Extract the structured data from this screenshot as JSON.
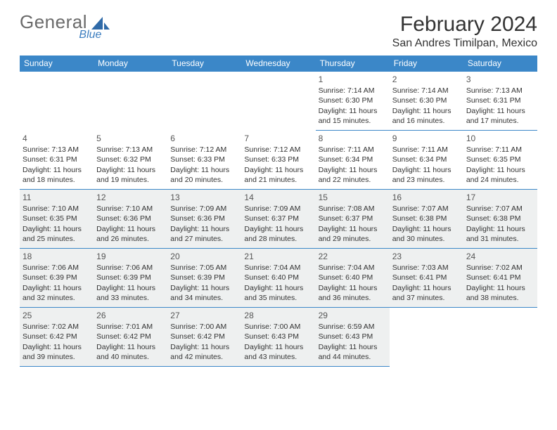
{
  "logo": {
    "general": "General",
    "blue": "Blue"
  },
  "title": "February 2024",
  "location": "San Andres Timilpan, Mexico",
  "colors": {
    "header_bg": "#3b87c8",
    "shaded_bg": "#eef0f0",
    "rule": "#3b87c8",
    "text": "#333333"
  },
  "dow": [
    "Sunday",
    "Monday",
    "Tuesday",
    "Wednesday",
    "Thursday",
    "Friday",
    "Saturday"
  ],
  "weeks": [
    [
      {
        "blank": true
      },
      {
        "blank": true
      },
      {
        "blank": true
      },
      {
        "blank": true
      },
      {
        "num": "1",
        "sunrise": "Sunrise: 7:14 AM",
        "sunset": "Sunset: 6:30 PM",
        "day1": "Daylight: 11 hours",
        "day2": "and 15 minutes."
      },
      {
        "num": "2",
        "sunrise": "Sunrise: 7:14 AM",
        "sunset": "Sunset: 6:30 PM",
        "day1": "Daylight: 11 hours",
        "day2": "and 16 minutes."
      },
      {
        "num": "3",
        "sunrise": "Sunrise: 7:13 AM",
        "sunset": "Sunset: 6:31 PM",
        "day1": "Daylight: 11 hours",
        "day2": "and 17 minutes."
      }
    ],
    [
      {
        "num": "4",
        "sunrise": "Sunrise: 7:13 AM",
        "sunset": "Sunset: 6:31 PM",
        "day1": "Daylight: 11 hours",
        "day2": "and 18 minutes."
      },
      {
        "num": "5",
        "sunrise": "Sunrise: 7:13 AM",
        "sunset": "Sunset: 6:32 PM",
        "day1": "Daylight: 11 hours",
        "day2": "and 19 minutes."
      },
      {
        "num": "6",
        "sunrise": "Sunrise: 7:12 AM",
        "sunset": "Sunset: 6:33 PM",
        "day1": "Daylight: 11 hours",
        "day2": "and 20 minutes."
      },
      {
        "num": "7",
        "sunrise": "Sunrise: 7:12 AM",
        "sunset": "Sunset: 6:33 PM",
        "day1": "Daylight: 11 hours",
        "day2": "and 21 minutes."
      },
      {
        "num": "8",
        "sunrise": "Sunrise: 7:11 AM",
        "sunset": "Sunset: 6:34 PM",
        "day1": "Daylight: 11 hours",
        "day2": "and 22 minutes."
      },
      {
        "num": "9",
        "sunrise": "Sunrise: 7:11 AM",
        "sunset": "Sunset: 6:34 PM",
        "day1": "Daylight: 11 hours",
        "day2": "and 23 minutes."
      },
      {
        "num": "10",
        "sunrise": "Sunrise: 7:11 AM",
        "sunset": "Sunset: 6:35 PM",
        "day1": "Daylight: 11 hours",
        "day2": "and 24 minutes."
      }
    ],
    [
      {
        "num": "11",
        "sunrise": "Sunrise: 7:10 AM",
        "sunset": "Sunset: 6:35 PM",
        "day1": "Daylight: 11 hours",
        "day2": "and 25 minutes.",
        "shaded": true
      },
      {
        "num": "12",
        "sunrise": "Sunrise: 7:10 AM",
        "sunset": "Sunset: 6:36 PM",
        "day1": "Daylight: 11 hours",
        "day2": "and 26 minutes.",
        "shaded": true
      },
      {
        "num": "13",
        "sunrise": "Sunrise: 7:09 AM",
        "sunset": "Sunset: 6:36 PM",
        "day1": "Daylight: 11 hours",
        "day2": "and 27 minutes.",
        "shaded": true
      },
      {
        "num": "14",
        "sunrise": "Sunrise: 7:09 AM",
        "sunset": "Sunset: 6:37 PM",
        "day1": "Daylight: 11 hours",
        "day2": "and 28 minutes.",
        "shaded": true
      },
      {
        "num": "15",
        "sunrise": "Sunrise: 7:08 AM",
        "sunset": "Sunset: 6:37 PM",
        "day1": "Daylight: 11 hours",
        "day2": "and 29 minutes.",
        "shaded": true
      },
      {
        "num": "16",
        "sunrise": "Sunrise: 7:07 AM",
        "sunset": "Sunset: 6:38 PM",
        "day1": "Daylight: 11 hours",
        "day2": "and 30 minutes.",
        "shaded": true
      },
      {
        "num": "17",
        "sunrise": "Sunrise: 7:07 AM",
        "sunset": "Sunset: 6:38 PM",
        "day1": "Daylight: 11 hours",
        "day2": "and 31 minutes.",
        "shaded": true
      }
    ],
    [
      {
        "num": "18",
        "sunrise": "Sunrise: 7:06 AM",
        "sunset": "Sunset: 6:39 PM",
        "day1": "Daylight: 11 hours",
        "day2": "and 32 minutes.",
        "shaded": true
      },
      {
        "num": "19",
        "sunrise": "Sunrise: 7:06 AM",
        "sunset": "Sunset: 6:39 PM",
        "day1": "Daylight: 11 hours",
        "day2": "and 33 minutes.",
        "shaded": true
      },
      {
        "num": "20",
        "sunrise": "Sunrise: 7:05 AM",
        "sunset": "Sunset: 6:39 PM",
        "day1": "Daylight: 11 hours",
        "day2": "and 34 minutes.",
        "shaded": true
      },
      {
        "num": "21",
        "sunrise": "Sunrise: 7:04 AM",
        "sunset": "Sunset: 6:40 PM",
        "day1": "Daylight: 11 hours",
        "day2": "and 35 minutes.",
        "shaded": true
      },
      {
        "num": "22",
        "sunrise": "Sunrise: 7:04 AM",
        "sunset": "Sunset: 6:40 PM",
        "day1": "Daylight: 11 hours",
        "day2": "and 36 minutes.",
        "shaded": true
      },
      {
        "num": "23",
        "sunrise": "Sunrise: 7:03 AM",
        "sunset": "Sunset: 6:41 PM",
        "day1": "Daylight: 11 hours",
        "day2": "and 37 minutes.",
        "shaded": true
      },
      {
        "num": "24",
        "sunrise": "Sunrise: 7:02 AM",
        "sunset": "Sunset: 6:41 PM",
        "day1": "Daylight: 11 hours",
        "day2": "and 38 minutes.",
        "shaded": true
      }
    ],
    [
      {
        "num": "25",
        "sunrise": "Sunrise: 7:02 AM",
        "sunset": "Sunset: 6:42 PM",
        "day1": "Daylight: 11 hours",
        "day2": "and 39 minutes.",
        "shaded": true
      },
      {
        "num": "26",
        "sunrise": "Sunrise: 7:01 AM",
        "sunset": "Sunset: 6:42 PM",
        "day1": "Daylight: 11 hours",
        "day2": "and 40 minutes.",
        "shaded": true
      },
      {
        "num": "27",
        "sunrise": "Sunrise: 7:00 AM",
        "sunset": "Sunset: 6:42 PM",
        "day1": "Daylight: 11 hours",
        "day2": "and 42 minutes.",
        "shaded": true
      },
      {
        "num": "28",
        "sunrise": "Sunrise: 7:00 AM",
        "sunset": "Sunset: 6:43 PM",
        "day1": "Daylight: 11 hours",
        "day2": "and 43 minutes.",
        "shaded": true
      },
      {
        "num": "29",
        "sunrise": "Sunrise: 6:59 AM",
        "sunset": "Sunset: 6:43 PM",
        "day1": "Daylight: 11 hours",
        "day2": "and 44 minutes.",
        "shaded": true
      },
      {
        "blank": true
      },
      {
        "blank": true
      }
    ]
  ]
}
